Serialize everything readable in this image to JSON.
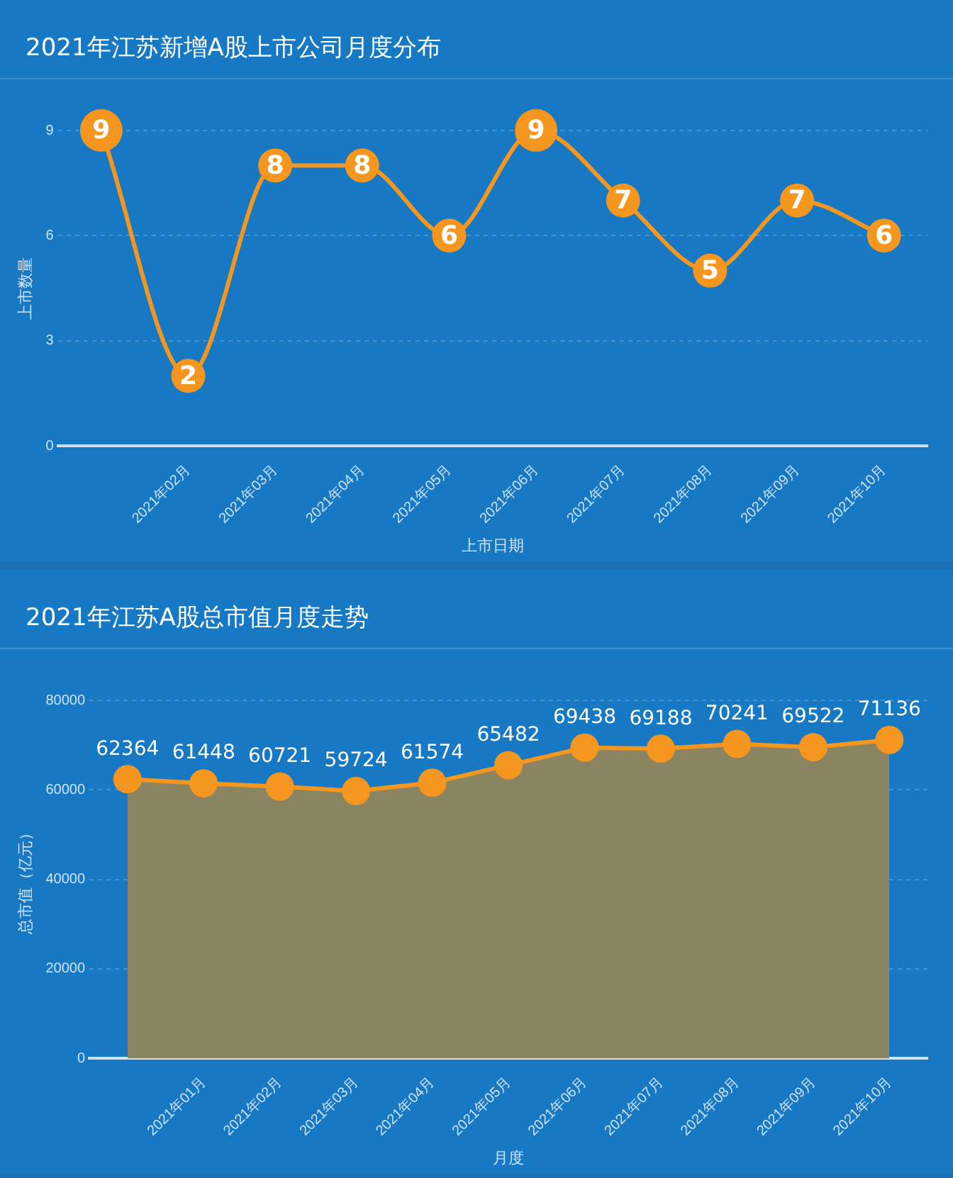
{
  "chart_data": [
    {
      "type": "line",
      "title": "2021年江苏新增A股上市公司月度分布",
      "xlabel": "上市日期",
      "ylabel": "上市数量",
      "categories": [
        null,
        "2021年02月",
        "2021年03月",
        "2021年04月",
        "2021年05月",
        "2021年06月",
        "2021年07月",
        "2021年08月",
        "2021年09月",
        "2021年10月"
      ],
      "series": [
        {
          "color": "#f5961e",
          "values": [
            9,
            2,
            8,
            8,
            6,
            9,
            7,
            5,
            7,
            6
          ]
        }
      ],
      "ylim": [
        0,
        9
      ],
      "yticks": [
        0,
        3,
        6,
        9
      ],
      "grid": "y",
      "marker": "circle",
      "line_style": "solid",
      "data_labels": true,
      "legend": false
    },
    {
      "type": "area",
      "title": "2021年江苏A股总市值月度走势",
      "xlabel": "月度",
      "ylabel": "总市值（亿元）",
      "categories": [
        null,
        "2021年01月",
        "2021年02月",
        "2021年03月",
        "2021年04月",
        "2021年05月",
        "2021年06月",
        "2021年07月",
        "2021年08月",
        "2021年09月",
        "2021年10月"
      ],
      "series": [
        {
          "color": "#f5961e",
          "values": [
            62364,
            61448,
            60721,
            59724,
            61574,
            65482,
            69438,
            69188,
            70241,
            69522,
            71136
          ]
        }
      ],
      "ylim": [
        0,
        80000
      ],
      "yticks": [
        0,
        20000,
        40000,
        60000,
        80000
      ],
      "grid": "y",
      "marker": "circle",
      "line_style": "solid",
      "data_labels": true,
      "legend": false
    }
  ]
}
